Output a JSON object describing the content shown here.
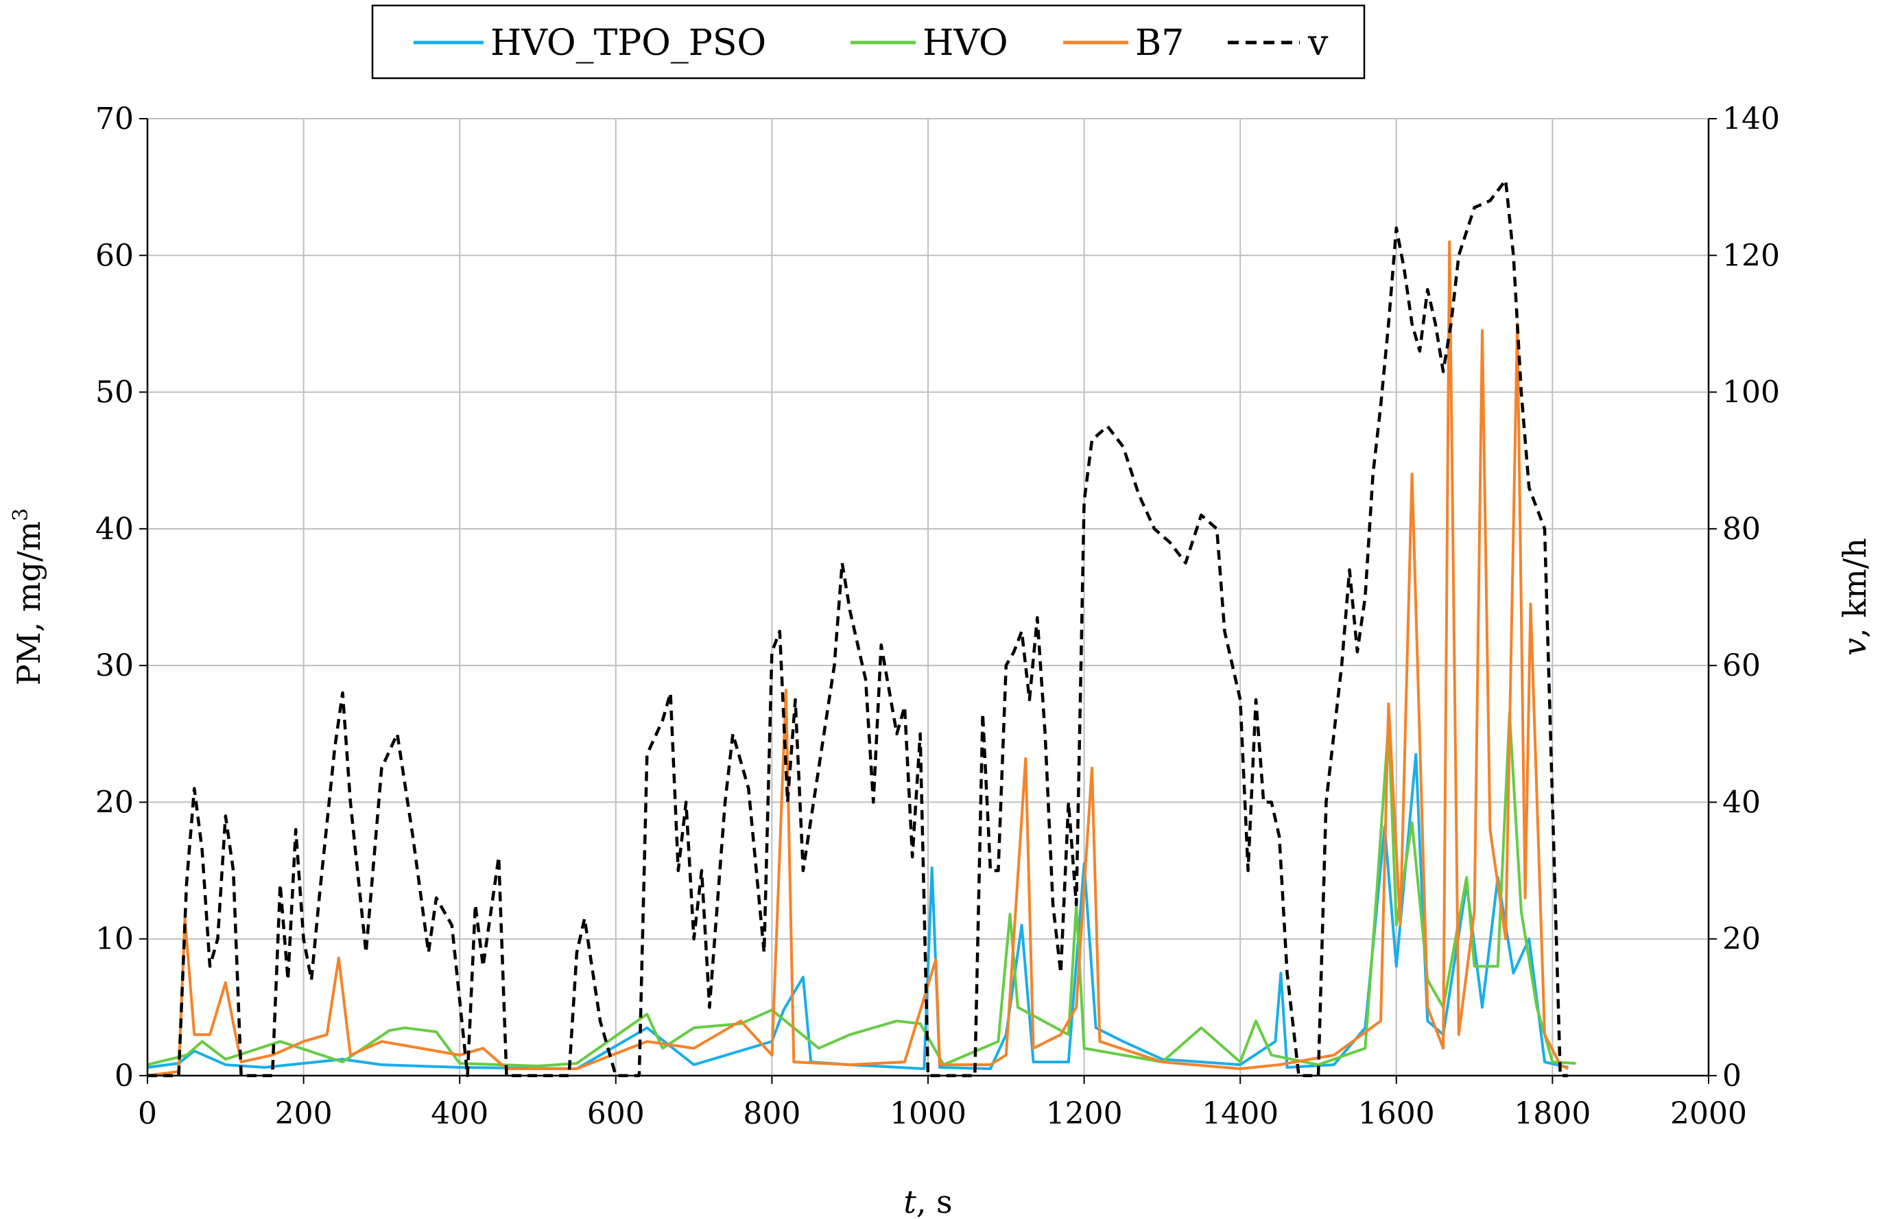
{
  "chart_data": {
    "type": "line",
    "title": "",
    "xlabel_italic": "t",
    "xlabel_rest": ", s",
    "ylabel_left_main": "PM, mg/m",
    "ylabel_left_sup": "3",
    "ylabel_right_italic": "v",
    "ylabel_right_rest": ", km/h",
    "xlim": [
      0,
      2000
    ],
    "ylim_left": [
      0,
      70
    ],
    "ylim_right": [
      0,
      140
    ],
    "x_ticks": [
      0,
      200,
      400,
      600,
      800,
      1000,
      1200,
      1400,
      1600,
      1800,
      2000
    ],
    "y_ticks_left": [
      0,
      10,
      20,
      30,
      40,
      50,
      60,
      70
    ],
    "y_ticks_right": [
      0,
      20,
      40,
      60,
      80,
      100,
      120,
      140
    ],
    "grid": true,
    "legend_position": "top-center",
    "series": [
      {
        "name": "HVO_TPO_PSO",
        "color": "#1aaee8",
        "dash": "solid",
        "axis": "left",
        "points": [
          [
            0,
            0.6
          ],
          [
            40,
            0.9
          ],
          [
            60,
            1.8
          ],
          [
            100,
            0.8
          ],
          [
            150,
            0.6
          ],
          [
            250,
            1.2
          ],
          [
            300,
            0.8
          ],
          [
            400,
            0.6
          ],
          [
            550,
            0.5
          ],
          [
            640,
            3.5
          ],
          [
            700,
            0.8
          ],
          [
            800,
            2.5
          ],
          [
            815,
            4.8
          ],
          [
            840,
            7.2
          ],
          [
            850,
            1.0
          ],
          [
            900,
            0.8
          ],
          [
            995,
            0.5
          ],
          [
            1005,
            15.2
          ],
          [
            1015,
            0.6
          ],
          [
            1080,
            0.5
          ],
          [
            1100,
            3.0
          ],
          [
            1120,
            11.0
          ],
          [
            1135,
            1.0
          ],
          [
            1180,
            1.0
          ],
          [
            1200,
            15.5
          ],
          [
            1215,
            3.5
          ],
          [
            1250,
            2.5
          ],
          [
            1300,
            1.2
          ],
          [
            1400,
            0.8
          ],
          [
            1445,
            2.5
          ],
          [
            1452,
            7.5
          ],
          [
            1460,
            0.6
          ],
          [
            1520,
            0.8
          ],
          [
            1560,
            3.5
          ],
          [
            1585,
            18.2
          ],
          [
            1600,
            8.0
          ],
          [
            1625,
            23.5
          ],
          [
            1640,
            4.0
          ],
          [
            1660,
            3.0
          ],
          [
            1690,
            14.0
          ],
          [
            1710,
            5.0
          ],
          [
            1730,
            14.5
          ],
          [
            1750,
            7.5
          ],
          [
            1770,
            10.0
          ],
          [
            1790,
            1.0
          ],
          [
            1820,
            0.6
          ]
        ]
      },
      {
        "name": "HVO",
        "color": "#66cc44",
        "dash": "solid",
        "axis": "left",
        "points": [
          [
            0,
            0.8
          ],
          [
            50,
            1.5
          ],
          [
            70,
            2.5
          ],
          [
            100,
            1.2
          ],
          [
            170,
            2.5
          ],
          [
            250,
            1.0
          ],
          [
            310,
            3.3
          ],
          [
            330,
            3.5
          ],
          [
            370,
            3.2
          ],
          [
            400,
            0.9
          ],
          [
            500,
            0.7
          ],
          [
            550,
            0.9
          ],
          [
            640,
            4.5
          ],
          [
            660,
            2.0
          ],
          [
            700,
            3.5
          ],
          [
            760,
            3.8
          ],
          [
            800,
            4.8
          ],
          [
            860,
            2.0
          ],
          [
            900,
            3.0
          ],
          [
            960,
            4.0
          ],
          [
            990,
            3.8
          ],
          [
            1020,
            0.8
          ],
          [
            1090,
            2.5
          ],
          [
            1105,
            11.8
          ],
          [
            1115,
            5.0
          ],
          [
            1180,
            3.0
          ],
          [
            1190,
            12.5
          ],
          [
            1200,
            2.0
          ],
          [
            1300,
            1.0
          ],
          [
            1350,
            3.5
          ],
          [
            1400,
            1.0
          ],
          [
            1420,
            4.0
          ],
          [
            1440,
            1.5
          ],
          [
            1500,
            0.8
          ],
          [
            1560,
            2.0
          ],
          [
            1575,
            13.5
          ],
          [
            1590,
            25.8
          ],
          [
            1600,
            11.0
          ],
          [
            1620,
            18.5
          ],
          [
            1640,
            7.0
          ],
          [
            1660,
            5.0
          ],
          [
            1690,
            14.5
          ],
          [
            1700,
            8.0
          ],
          [
            1730,
            8.0
          ],
          [
            1745,
            26.5
          ],
          [
            1760,
            12.0
          ],
          [
            1780,
            5.0
          ],
          [
            1800,
            1.0
          ],
          [
            1830,
            0.9
          ]
        ]
      },
      {
        "name": "B7",
        "color": "#f5832a",
        "dash": "solid",
        "axis": "left",
        "points": [
          [
            0,
            0.0
          ],
          [
            40,
            0.3
          ],
          [
            48,
            11.5
          ],
          [
            60,
            3.0
          ],
          [
            80,
            3.0
          ],
          [
            100,
            6.8
          ],
          [
            110,
            3.8
          ],
          [
            120,
            1.0
          ],
          [
            160,
            1.5
          ],
          [
            200,
            2.5
          ],
          [
            230,
            3.0
          ],
          [
            245,
            8.6
          ],
          [
            260,
            1.5
          ],
          [
            300,
            2.5
          ],
          [
            350,
            2.0
          ],
          [
            400,
            1.5
          ],
          [
            430,
            2.0
          ],
          [
            460,
            0.5
          ],
          [
            550,
            0.5
          ],
          [
            640,
            2.5
          ],
          [
            700,
            2.0
          ],
          [
            760,
            4.0
          ],
          [
            800,
            1.5
          ],
          [
            818,
            28.2
          ],
          [
            828,
            1.0
          ],
          [
            900,
            0.8
          ],
          [
            970,
            1.0
          ],
          [
            1010,
            8.5
          ],
          [
            1015,
            0.8
          ],
          [
            1080,
            0.8
          ],
          [
            1100,
            1.5
          ],
          [
            1125,
            23.2
          ],
          [
            1135,
            2.0
          ],
          [
            1170,
            3.0
          ],
          [
            1190,
            5.0
          ],
          [
            1210,
            22.5
          ],
          [
            1220,
            2.5
          ],
          [
            1300,
            1.0
          ],
          [
            1400,
            0.5
          ],
          [
            1450,
            0.8
          ],
          [
            1520,
            1.5
          ],
          [
            1580,
            4.0
          ],
          [
            1590,
            27.2
          ],
          [
            1605,
            11.0
          ],
          [
            1620,
            44.0
          ],
          [
            1640,
            5.0
          ],
          [
            1660,
            2.0
          ],
          [
            1668,
            61.0
          ],
          [
            1680,
            3.0
          ],
          [
            1700,
            12.0
          ],
          [
            1710,
            54.5
          ],
          [
            1720,
            18.0
          ],
          [
            1740,
            10.0
          ],
          [
            1755,
            55.0
          ],
          [
            1765,
            13.0
          ],
          [
            1772,
            34.5
          ],
          [
            1790,
            3.0
          ],
          [
            1810,
            0.8
          ],
          [
            1820,
            0.5
          ]
        ]
      },
      {
        "name": "v",
        "color": "#000000",
        "dash": "dashed",
        "axis": "right",
        "points": [
          [
            0,
            0
          ],
          [
            40,
            0
          ],
          [
            50,
            28
          ],
          [
            60,
            42
          ],
          [
            70,
            33
          ],
          [
            80,
            16
          ],
          [
            90,
            20
          ],
          [
            100,
            38
          ],
          [
            110,
            30
          ],
          [
            120,
            0
          ],
          [
            160,
            0
          ],
          [
            170,
            28
          ],
          [
            180,
            14
          ],
          [
            190,
            36
          ],
          [
            200,
            20
          ],
          [
            210,
            14
          ],
          [
            220,
            26
          ],
          [
            240,
            48
          ],
          [
            250,
            56
          ],
          [
            260,
            40
          ],
          [
            280,
            18
          ],
          [
            300,
            45
          ],
          [
            320,
            50
          ],
          [
            340,
            35
          ],
          [
            360,
            18
          ],
          [
            370,
            26
          ],
          [
            390,
            22
          ],
          [
            410,
            0
          ],
          [
            420,
            25
          ],
          [
            430,
            16
          ],
          [
            450,
            32
          ],
          [
            460,
            0
          ],
          [
            540,
            0
          ],
          [
            550,
            18
          ],
          [
            560,
            23
          ],
          [
            580,
            8
          ],
          [
            600,
            0
          ],
          [
            630,
            0
          ],
          [
            640,
            47
          ],
          [
            660,
            52
          ],
          [
            670,
            56
          ],
          [
            680,
            30
          ],
          [
            690,
            40
          ],
          [
            700,
            20
          ],
          [
            710,
            30
          ],
          [
            720,
            10
          ],
          [
            740,
            40
          ],
          [
            750,
            50
          ],
          [
            770,
            42
          ],
          [
            790,
            18
          ],
          [
            800,
            62
          ],
          [
            810,
            65
          ],
          [
            820,
            40
          ],
          [
            830,
            55
          ],
          [
            840,
            30
          ],
          [
            860,
            45
          ],
          [
            880,
            60
          ],
          [
            890,
            75
          ],
          [
            900,
            68
          ],
          [
            920,
            58
          ],
          [
            930,
            40
          ],
          [
            940,
            63
          ],
          [
            960,
            50
          ],
          [
            970,
            54
          ],
          [
            980,
            32
          ],
          [
            990,
            50
          ],
          [
            1000,
            0
          ],
          [
            1060,
            0
          ],
          [
            1070,
            53
          ],
          [
            1080,
            30
          ],
          [
            1090,
            30
          ],
          [
            1100,
            60
          ],
          [
            1110,
            62
          ],
          [
            1120,
            65
          ],
          [
            1130,
            55
          ],
          [
            1140,
            67
          ],
          [
            1150,
            50
          ],
          [
            1160,
            25
          ],
          [
            1170,
            15
          ],
          [
            1180,
            40
          ],
          [
            1190,
            25
          ],
          [
            1200,
            84
          ],
          [
            1210,
            93
          ],
          [
            1230,
            95
          ],
          [
            1250,
            92
          ],
          [
            1270,
            85
          ],
          [
            1290,
            80
          ],
          [
            1310,
            78
          ],
          [
            1330,
            75
          ],
          [
            1350,
            82
          ],
          [
            1370,
            80
          ],
          [
            1380,
            65
          ],
          [
            1400,
            55
          ],
          [
            1410,
            30
          ],
          [
            1420,
            55
          ],
          [
            1430,
            40
          ],
          [
            1440,
            40
          ],
          [
            1450,
            35
          ],
          [
            1460,
            15
          ],
          [
            1475,
            0
          ],
          [
            1500,
            0
          ],
          [
            1510,
            40
          ],
          [
            1530,
            60
          ],
          [
            1540,
            74
          ],
          [
            1550,
            62
          ],
          [
            1560,
            70
          ],
          [
            1570,
            88
          ],
          [
            1580,
            98
          ],
          [
            1590,
            110
          ],
          [
            1600,
            124
          ],
          [
            1610,
            118
          ],
          [
            1620,
            110
          ],
          [
            1630,
            106
          ],
          [
            1640,
            115
          ],
          [
            1650,
            110
          ],
          [
            1660,
            103
          ],
          [
            1670,
            110
          ],
          [
            1680,
            120
          ],
          [
            1700,
            127
          ],
          [
            1720,
            128
          ],
          [
            1740,
            131
          ],
          [
            1750,
            120
          ],
          [
            1760,
            100
          ],
          [
            1770,
            86
          ],
          [
            1790,
            80
          ],
          [
            1800,
            40
          ],
          [
            1810,
            0
          ],
          [
            1820,
            0
          ]
        ]
      }
    ]
  }
}
